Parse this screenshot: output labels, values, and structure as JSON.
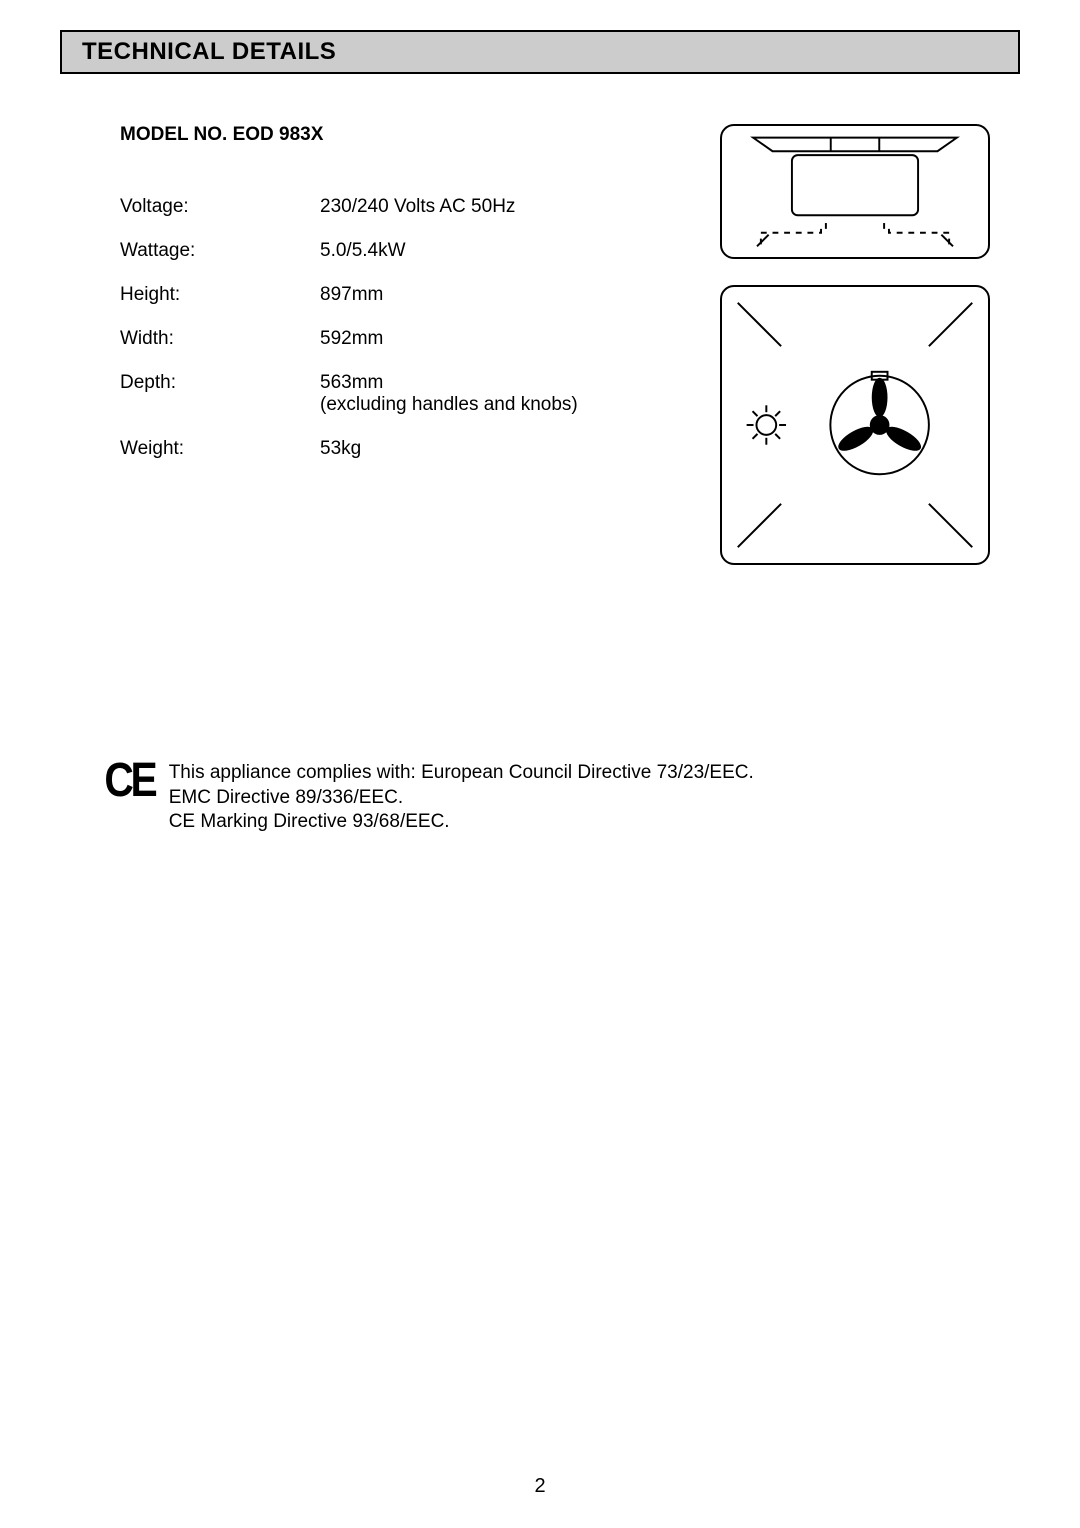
{
  "header": {
    "title": "TECHNICAL DETAILS"
  },
  "model": {
    "label": "MODEL NO. EOD 983X"
  },
  "specs": [
    {
      "label": "Voltage:",
      "value": "230/240 Volts AC 50Hz"
    },
    {
      "label": "Wattage:",
      "value": "5.0/5.4kW"
    },
    {
      "label": "Height:",
      "value": "897mm"
    },
    {
      "label": "Width:",
      "value": "592mm"
    },
    {
      "label": "Depth:",
      "value": "563mm\n(excluding handles and knobs)"
    },
    {
      "label": "Weight:",
      "value": "53kg"
    }
  ],
  "compliance": {
    "ce": "CΕ",
    "lines": [
      "This appliance complies with: European Council Directive 73/23/EEC.",
      " EMC Directive 89/336/EEC.",
      " CE Marking Directive 93/68/EEC."
    ]
  },
  "pageNumber": "2",
  "colors": {
    "headerBg": "#cccccc",
    "border": "#000000",
    "text": "#000000",
    "pageBg": "#ffffff"
  },
  "diagrams": {
    "top": {
      "type": "oven-top-view-schematic"
    },
    "bottom": {
      "type": "oven-rear-view-schematic"
    }
  }
}
